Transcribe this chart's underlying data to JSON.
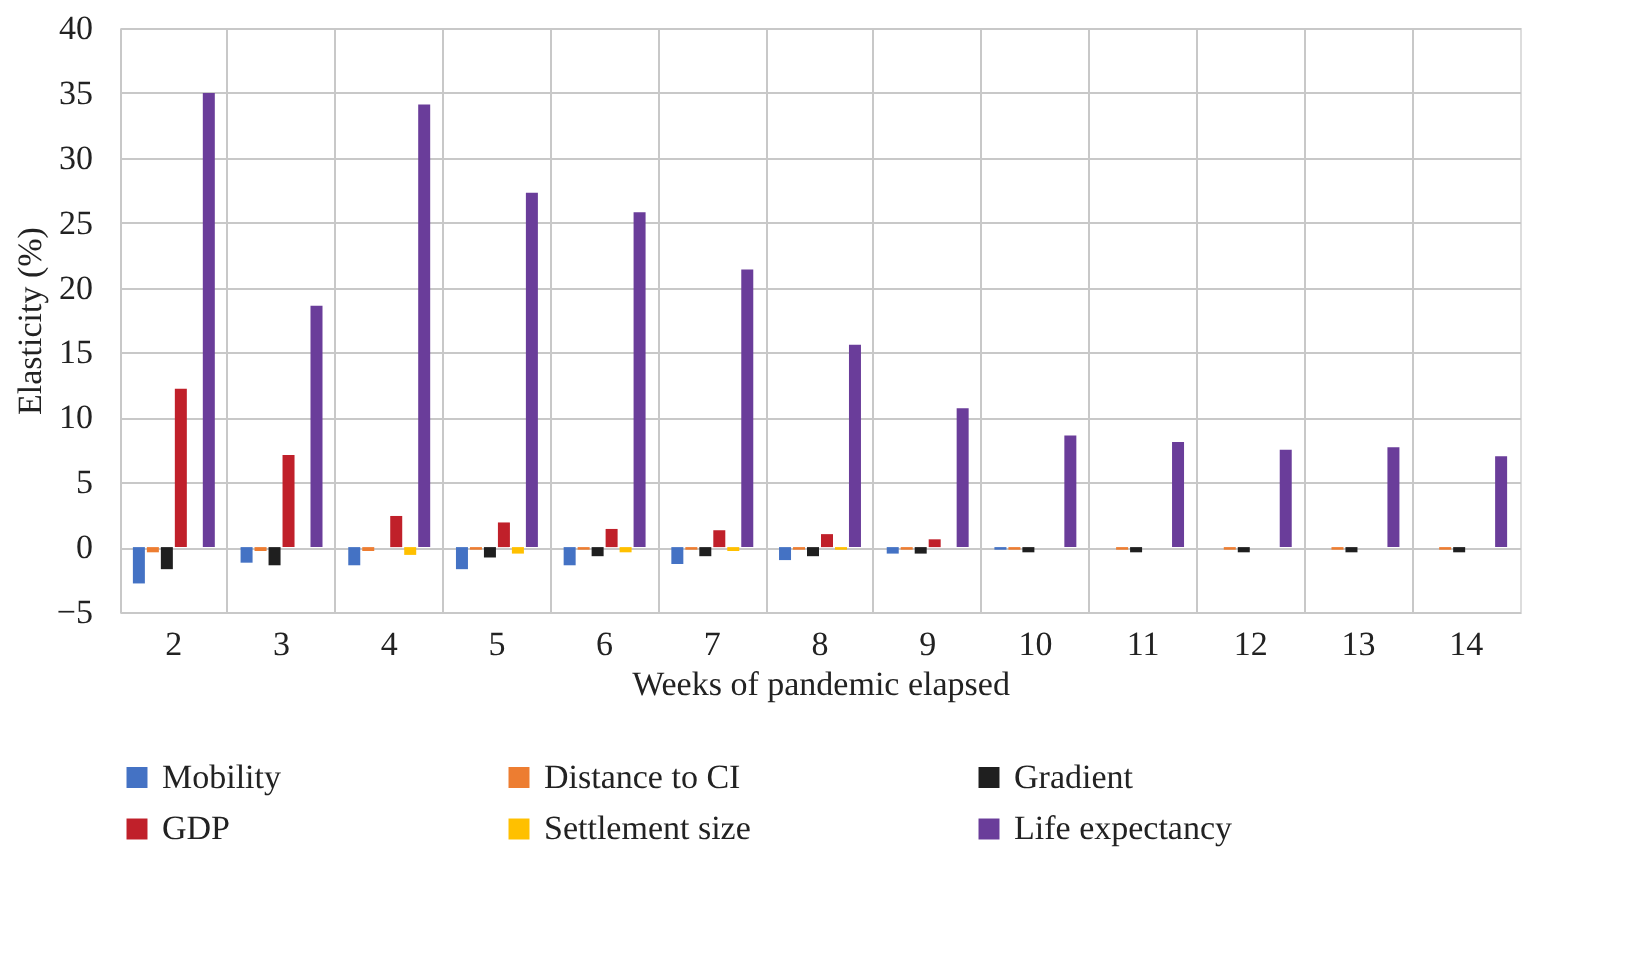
{
  "chart_data": {
    "type": "bar",
    "xlabel": "Weeks of pandemic elapsed",
    "ylabel": "Elasticity (%)",
    "categories": [
      "2",
      "3",
      "4",
      "5",
      "6",
      "7",
      "8",
      "9",
      "10",
      "11",
      "12",
      "13",
      "14"
    ],
    "series": [
      {
        "name": "Mobility",
        "color": "#4472c4",
        "values": [
          -2.8,
          -1.2,
          -1.4,
          -1.7,
          -1.4,
          -1.3,
          -1.0,
          -0.5,
          -0.2,
          0,
          0,
          0,
          0
        ]
      },
      {
        "name": "Distance to CI",
        "color": "#ed7d31",
        "values": [
          -0.4,
          -0.3,
          -0.3,
          -0.2,
          -0.2,
          -0.2,
          -0.2,
          -0.2,
          -0.2,
          -0.2,
          -0.2,
          -0.2,
          -0.2
        ]
      },
      {
        "name": "Gradient",
        "color": "#1f1f1f",
        "values": [
          -1.7,
          -1.4,
          0,
          -0.8,
          -0.7,
          -0.7,
          -0.7,
          -0.5,
          -0.4,
          -0.4,
          -0.4,
          -0.4,
          -0.4
        ]
      },
      {
        "name": "GDP",
        "color": "#c0202a",
        "values": [
          12.2,
          7.1,
          2.4,
          1.9,
          1.4,
          1.3,
          1.0,
          0.6,
          0,
          0,
          0,
          0,
          0
        ]
      },
      {
        "name": "Settlement size",
        "color": "#ffc000",
        "values": [
          0,
          0,
          -0.6,
          -0.5,
          -0.4,
          -0.3,
          -0.2,
          0,
          0,
          0,
          0,
          0,
          0
        ]
      },
      {
        "name": "Life expectancy",
        "color": "#6a3d9a",
        "values": [
          35.0,
          18.6,
          34.1,
          27.3,
          25.8,
          21.4,
          15.6,
          10.7,
          8.6,
          8.1,
          7.5,
          7.7,
          7.0
        ]
      }
    ],
    "ylim": [
      -5,
      40
    ],
    "yticks": [
      -5,
      0,
      5,
      10,
      15,
      20,
      25,
      30,
      35,
      40
    ],
    "grid": true,
    "legend": "bottom"
  }
}
